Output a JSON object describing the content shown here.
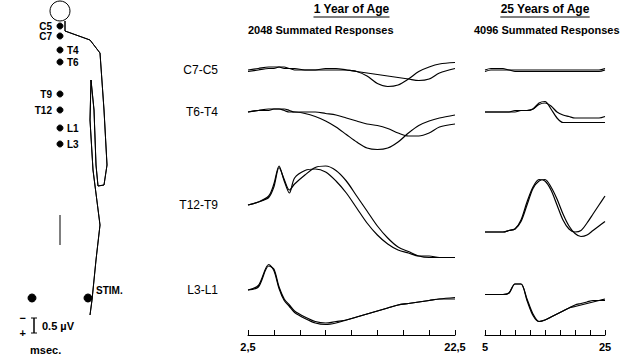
{
  "diagram": {
    "electrodes": [
      "C5",
      "C7",
      "T4",
      "T6",
      "T9",
      "T12",
      "L1",
      "L3"
    ],
    "stim_label": "STIM."
  },
  "scale_bar": {
    "value": 0.5,
    "label": "0.5 µV",
    "negative": "−",
    "positive": "+"
  },
  "chart_data": [
    {
      "type": "line",
      "title": "1 Year of Age",
      "subtitle": "2048 Summated Responses",
      "xlabel": "msec.",
      "color": "#000000",
      "tick_labels": "x",
      "xlim": [
        2.5,
        22.5
      ],
      "xticks": [
        {
          "value": 2.5,
          "label": "2,5"
        },
        {
          "value": 22.5,
          "label": "22,5"
        }
      ],
      "minor_xticks": [
        5,
        7.5,
        10,
        12.5,
        15,
        17.5,
        20
      ],
      "x": [
        2.5,
        3.5,
        4.5,
        5,
        5.5,
        6,
        6.5,
        7,
        8,
        9,
        10,
        11,
        12,
        13,
        14,
        15,
        16,
        17,
        18,
        19,
        20,
        21,
        22.5
      ],
      "rows": [
        {
          "label": "C7-C5",
          "ylim": [
            -1,
            1
          ],
          "traces": [
            {
              "values": [
                0,
                0.05,
                0.1,
                0.1,
                0.1,
                0.05,
                0.05,
                0,
                0,
                0,
                0.05,
                0.05,
                0,
                -0.05,
                -0.2,
                -0.45,
                -0.55,
                -0.5,
                -0.3,
                -0.05,
                0.1,
                0.2,
                0.25
              ]
            },
            {
              "values": [
                -0.05,
                0,
                0.05,
                0.05,
                0.1,
                0.1,
                0.05,
                0.05,
                0,
                0,
                0,
                0,
                0,
                -0.05,
                -0.1,
                -0.15,
                -0.2,
                -0.25,
                -0.3,
                -0.35,
                -0.3,
                -0.1,
                0.05
              ]
            }
          ]
        },
        {
          "label": "T6-T4",
          "ylim": [
            -1.5,
            1
          ],
          "traces": [
            {
              "values": [
                0,
                0.05,
                0.1,
                0.1,
                0.1,
                0.05,
                0,
                0,
                -0.05,
                -0.15,
                -0.3,
                -0.5,
                -0.75,
                -1,
                -1.2,
                -1.25,
                -1.2,
                -1,
                -0.7,
                -0.45,
                -0.3,
                -0.2,
                -0.1
              ]
            },
            {
              "values": [
                0,
                0.05,
                0.05,
                0.1,
                0.1,
                0.1,
                0.05,
                0,
                0,
                0,
                -0.05,
                -0.1,
                -0.2,
                -0.3,
                -0.4,
                -0.45,
                -0.55,
                -0.7,
                -0.8,
                -0.8,
                -0.7,
                -0.5,
                -0.4
              ]
            }
          ]
        },
        {
          "label": "T12-T9",
          "ylim": [
            -2,
            2
          ],
          "traces": [
            {
              "values": [
                0,
                0.1,
                0.3,
                0.7,
                1.3,
                0.8,
                0.4,
                0.9,
                1.15,
                1.2,
                1.1,
                0.8,
                0.4,
                -0.1,
                -0.6,
                -1,
                -1.3,
                -1.5,
                -1.6,
                -1.7,
                -1.7,
                -1.75,
                -1.75
              ]
            },
            {
              "values": [
                0,
                0.1,
                0.25,
                0.6,
                1.25,
                0.85,
                0.5,
                0.7,
                1,
                1.25,
                1.3,
                1.15,
                0.8,
                0.3,
                -0.2,
                -0.7,
                -1.1,
                -1.4,
                -1.55,
                -1.7,
                -1.75,
                -1.75,
                -1.75
              ]
            }
          ]
        },
        {
          "label": "L3-L1",
          "ylim": [
            -1.5,
            1.5
          ],
          "traces": [
            {
              "values": [
                0,
                0.1,
                0.8,
                0.7,
                0.1,
                -0.3,
                -0.5,
                -0.7,
                -0.9,
                -1.05,
                -1.1,
                -1.05,
                -1,
                -0.9,
                -0.8,
                -0.7,
                -0.6,
                -0.5,
                -0.45,
                -0.4,
                -0.35,
                -0.3,
                -0.3
              ]
            },
            {
              "values": [
                0,
                0.15,
                0.85,
                0.65,
                0.05,
                -0.35,
                -0.55,
                -0.75,
                -0.95,
                -1.1,
                -1.15,
                -1.1,
                -1,
                -0.9,
                -0.8,
                -0.7,
                -0.6,
                -0.5,
                -0.45,
                -0.4,
                -0.35,
                -0.3,
                -0.25
              ]
            }
          ]
        }
      ]
    },
    {
      "type": "line",
      "title": "25 Years of Age",
      "subtitle": "4096 Summated Responses",
      "color": "#000000",
      "tick_labels": "x",
      "xlim": [
        5,
        25
      ],
      "xticks": [
        5,
        25
      ],
      "minor_xticks": [
        7.5,
        10,
        12.5,
        15,
        17.5,
        20,
        22.5
      ],
      "x": [
        5,
        6,
        7,
        8,
        9,
        10,
        11,
        12,
        13,
        14,
        15,
        16,
        17,
        18,
        19,
        20,
        21,
        22,
        23,
        24,
        25
      ],
      "rows": [
        {
          "ylim": [
            -1,
            1
          ],
          "traces": [
            {
              "values": [
                0,
                0.05,
                0.05,
                0.05,
                0,
                0,
                0,
                0,
                0,
                0,
                0,
                0,
                0,
                0,
                0,
                0,
                0,
                0,
                0,
                0,
                0.05
              ]
            },
            {
              "values": [
                -0.05,
                0,
                0,
                0,
                0,
                -0.05,
                -0.05,
                -0.05,
                -0.05,
                -0.05,
                -0.05,
                -0.05,
                -0.05,
                -0.05,
                -0.05,
                -0.05,
                -0.05,
                -0.05,
                -0.05,
                -0.05,
                0
              ]
            }
          ]
        },
        {
          "ylim": [
            -1.5,
            1
          ],
          "traces": [
            {
              "values": [
                0,
                0,
                0,
                0,
                0,
                0.05,
                0.05,
                0.05,
                0.1,
                0.3,
                0.35,
                0.1,
                -0.2,
                -0.35,
                -0.35,
                -0.35,
                -0.35,
                -0.35,
                -0.35,
                -0.35,
                -0.35
              ]
            },
            {
              "values": [
                0,
                0,
                0,
                0,
                0,
                0,
                0.05,
                0.05,
                0.1,
                0.25,
                0.3,
                0.2,
                0,
                -0.1,
                -0.15,
                -0.2,
                -0.2,
                -0.2,
                -0.2,
                -0.2,
                -0.15
              ]
            }
          ]
        },
        {
          "ylim": [
            -2,
            2
          ],
          "traces": [
            {
              "values": [
                -0.9,
                -0.9,
                -0.9,
                -0.9,
                -0.85,
                -0.8,
                -0.5,
                0.1,
                0.6,
                0.85,
                0.8,
                0.5,
                0,
                -0.5,
                -0.8,
                -0.9,
                -0.85,
                -0.6,
                -0.3,
                0,
                0.3
              ]
            },
            {
              "values": [
                -0.9,
                -0.9,
                -0.9,
                -0.9,
                -0.85,
                -0.8,
                -0.55,
                0,
                0.55,
                0.8,
                0.85,
                0.6,
                0.2,
                -0.3,
                -0.7,
                -0.95,
                -1.05,
                -1,
                -0.85,
                -0.7,
                -0.55
              ]
            }
          ]
        },
        {
          "ylim": [
            -1.5,
            1.5
          ],
          "traces": [
            {
              "values": [
                -0.15,
                -0.15,
                -0.15,
                -0.15,
                -0.1,
                0.2,
                0.2,
                -0.3,
                -0.8,
                -1.05,
                -1,
                -0.9,
                -0.8,
                -0.7,
                -0.6,
                -0.5,
                -0.45,
                -0.4,
                -0.35,
                -0.35,
                -0.35
              ]
            },
            {
              "values": [
                -0.15,
                -0.15,
                -0.15,
                -0.15,
                -0.1,
                0.2,
                0.2,
                -0.35,
                -0.85,
                -1.05,
                -1,
                -0.9,
                -0.8,
                -0.7,
                -0.6,
                -0.55,
                -0.5,
                -0.45,
                -0.4,
                -0.35,
                -0.3
              ]
            }
          ]
        }
      ]
    }
  ]
}
